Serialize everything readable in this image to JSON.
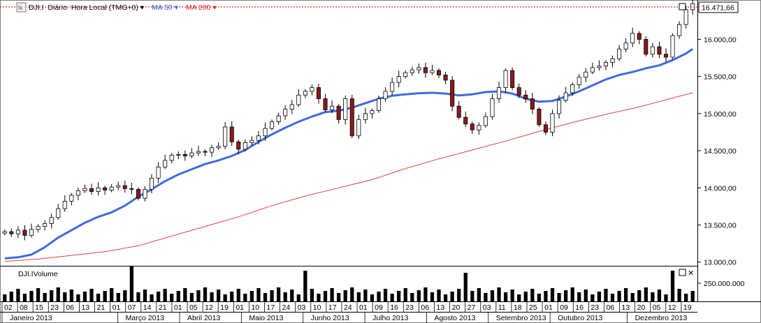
{
  "legend": {
    "icon": "chart-type-icon",
    "symbol": "DJI.I",
    "period": "Diário",
    "timezone": "Hora Local (TMG+0)",
    "ma1": "MA 50",
    "ma2": "MA 200"
  },
  "price_tag": "16.471,66",
  "volume_panel": {
    "title": "DJI.IVolume",
    "tick": "250.000.000"
  },
  "colors": {
    "ma50": "#4169e1",
    "ma200": "#e8403a",
    "candle_up": "#ffffff",
    "candle_down": "#8b1a1a",
    "price_line": "#cc0000",
    "accent_border": "#0000aa"
  },
  "chart_data": {
    "type": "candlestick",
    "y_ticks": [
      "13.000,00",
      "13.500,00",
      "14.000,00",
      "14.500,00",
      "15.000,00",
      "15.500,00",
      "16.000,00"
    ],
    "ylim": [
      12950,
      16530
    ],
    "last_price": 16471.66,
    "ma50": [
      [
        0,
        13050
      ],
      [
        2,
        13065
      ],
      [
        4,
        13100
      ],
      [
        6,
        13200
      ],
      [
        8,
        13330
      ],
      [
        10,
        13430
      ],
      [
        12,
        13530
      ],
      [
        14,
        13610
      ],
      [
        16,
        13670
      ],
      [
        18,
        13760
      ],
      [
        20,
        13880
      ],
      [
        22,
        13980
      ],
      [
        24,
        14090
      ],
      [
        26,
        14180
      ],
      [
        28,
        14250
      ],
      [
        30,
        14320
      ],
      [
        32,
        14370
      ],
      [
        34,
        14430
      ],
      [
        36,
        14510
      ],
      [
        38,
        14620
      ],
      [
        40,
        14720
      ],
      [
        42,
        14810
      ],
      [
        44,
        14890
      ],
      [
        46,
        14960
      ],
      [
        48,
        15020
      ],
      [
        50,
        15040
      ],
      [
        52,
        15080
      ],
      [
        54,
        15140
      ],
      [
        56,
        15200
      ],
      [
        58,
        15240
      ],
      [
        60,
        15260
      ],
      [
        62,
        15275
      ],
      [
        64,
        15280
      ],
      [
        66,
        15270
      ],
      [
        68,
        15245
      ],
      [
        70,
        15260
      ],
      [
        72,
        15290
      ],
      [
        74,
        15300
      ],
      [
        76,
        15270
      ],
      [
        78,
        15200
      ],
      [
        80,
        15160
      ],
      [
        82,
        15170
      ],
      [
        84,
        15230
      ],
      [
        86,
        15300
      ],
      [
        88,
        15380
      ],
      [
        90,
        15460
      ],
      [
        92,
        15520
      ],
      [
        94,
        15560
      ],
      [
        96,
        15610
      ],
      [
        98,
        15650
      ],
      [
        100,
        15720
      ],
      [
        102,
        15810
      ],
      [
        103,
        15870
      ]
    ],
    "ma200": [
      [
        0,
        13010
      ],
      [
        5,
        13040
      ],
      [
        10,
        13090
      ],
      [
        15,
        13140
      ],
      [
        20,
        13220
      ],
      [
        25,
        13350
      ],
      [
        30,
        13480
      ],
      [
        35,
        13610
      ],
      [
        40,
        13760
      ],
      [
        45,
        13890
      ],
      [
        50,
        14000
      ],
      [
        55,
        14110
      ],
      [
        60,
        14260
      ],
      [
        65,
        14390
      ],
      [
        70,
        14510
      ],
      [
        75,
        14630
      ],
      [
        80,
        14760
      ],
      [
        85,
        14880
      ],
      [
        90,
        14990
      ],
      [
        95,
        15090
      ],
      [
        100,
        15210
      ],
      [
        103,
        15280
      ]
    ],
    "closes": [
      13410,
      13380,
      13430,
      13360,
      13440,
      13480,
      13520,
      13600,
      13720,
      13820,
      13900,
      13960,
      13990,
      13950,
      14000,
      13970,
      14010,
      14030,
      13990,
      13980,
      13860,
      13980,
      14130,
      14280,
      14370,
      14440,
      14450,
      14430,
      14470,
      14490,
      14480,
      14540,
      14560,
      14820,
      14620,
      14520,
      14610,
      14640,
      14700,
      14800,
      14890,
      14970,
      15060,
      15120,
      15250,
      15300,
      15350,
      15200,
      15050,
      15100,
      14920,
      15200,
      14700,
      14920,
      15000,
      15040,
      15200,
      15300,
      15420,
      15500,
      15550,
      15590,
      15620,
      15550,
      15580,
      15520,
      15450,
      15100,
      14950,
      14860,
      14780,
      14840,
      14960,
      15200,
      15350,
      15580,
      15350,
      15250,
      15200,
      15060,
      14850,
      14750,
      15000,
      15180,
      15280,
      15390,
      15490,
      15560,
      15620,
      15640,
      15690,
      15740,
      15870,
      15950,
      16080,
      16000,
      15800,
      15900,
      15800,
      15760,
      16050,
      16200,
      16400,
      16480
    ],
    "x_day_ticks": [
      "02",
      "08",
      "15",
      "23",
      "06",
      "13",
      "21",
      "01",
      "07",
      "14",
      "21",
      "01",
      "05",
      "12",
      "19",
      "01",
      "10",
      "17",
      "24",
      "03",
      "10",
      "17",
      "24",
      "01",
      "09",
      "16",
      "23",
      "06",
      "13",
      "20",
      "27",
      "03",
      "11",
      "18",
      "25",
      "01",
      "09",
      "16",
      "23",
      "06",
      "13",
      "20",
      "05",
      "12",
      "19"
    ],
    "x_month_labels": [
      "Janeiro 2013",
      "Março 2013",
      "Abril 2013",
      "Maio 2013",
      "Junho 2013",
      "Julho 2013",
      "Agosto 2013",
      "Setembro 2013",
      "Outubro 2013",
      "Dezembro 2013"
    ]
  }
}
